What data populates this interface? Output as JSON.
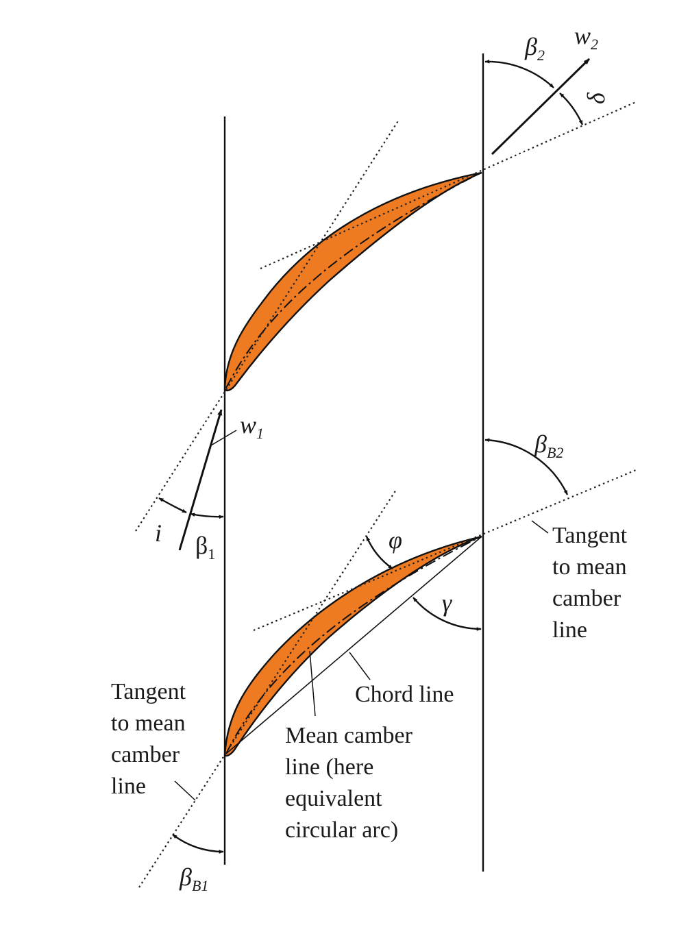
{
  "labels": {
    "w1": "w",
    "w1_sub": "1",
    "w2": "w",
    "w2_sub": "2",
    "beta1": "β",
    "beta1_sub": "1",
    "beta2": "β",
    "beta2_sub": "2",
    "betaB1": "β",
    "betaB1_sub": "B1",
    "betaB2": "β",
    "betaB2_sub": "B2",
    "incidence": "i",
    "deviation": "δ",
    "camber_angle": "φ",
    "stagger": "γ",
    "tangent_right": [
      "Tangent",
      "to mean",
      "camber",
      "line"
    ],
    "tangent_left": [
      "Tangent",
      "to mean",
      "camber",
      "line"
    ],
    "chord_line": "Chord line",
    "mean_camber": [
      "Mean camber",
      "line (here",
      "equivalent",
      "circular arc)"
    ]
  },
  "colors": {
    "blade_fill": "#ee7a22",
    "stroke": "#111111"
  }
}
